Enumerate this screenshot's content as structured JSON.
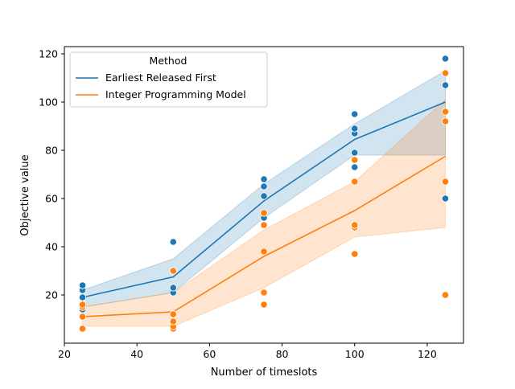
{
  "chart_data": {
    "type": "line",
    "xlabel": "Number of timeslots",
    "ylabel": "Objective value",
    "xlim": [
      20,
      130
    ],
    "ylim": [
      0,
      123
    ],
    "xticks": [
      20,
      40,
      60,
      80,
      100,
      120
    ],
    "yticks": [
      20,
      40,
      60,
      80,
      100,
      120
    ],
    "grid": false,
    "legend": {
      "title": "Method",
      "placement": "top-left"
    },
    "series": [
      {
        "name": "Earliest Released First",
        "color": "#1f77b4",
        "x": [
          25,
          50,
          75,
          100,
          125
        ],
        "mean": [
          19,
          27.5,
          59,
          84.5,
          100
        ],
        "ci_low": [
          15,
          21,
          52,
          78,
          78
        ],
        "ci_high": [
          22,
          35,
          66,
          91,
          113
        ],
        "points": [
          [
            25,
            14
          ],
          [
            25,
            15
          ],
          [
            25,
            19
          ],
          [
            25,
            22
          ],
          [
            25,
            24
          ],
          [
            50,
            21
          ],
          [
            50,
            23
          ],
          [
            50,
            42
          ],
          [
            75,
            52
          ],
          [
            75,
            61
          ],
          [
            75,
            65
          ],
          [
            75,
            68
          ],
          [
            100,
            73
          ],
          [
            100,
            79
          ],
          [
            100,
            87
          ],
          [
            100,
            89
          ],
          [
            100,
            95
          ],
          [
            125,
            60
          ],
          [
            125,
            107
          ],
          [
            125,
            118
          ]
        ]
      },
      {
        "name": "Integer Programming Model",
        "color": "#ff7f0e",
        "x": [
          25,
          50,
          75,
          100,
          125
        ],
        "mean": [
          11,
          13,
          36,
          55,
          77.5
        ],
        "ci_low": [
          7,
          7,
          23,
          44,
          48
        ],
        "ci_high": [
          15,
          21,
          47,
          67,
          101
        ],
        "points": [
          [
            25,
            6
          ],
          [
            25,
            11
          ],
          [
            25,
            15
          ],
          [
            25,
            16
          ],
          [
            50,
            6
          ],
          [
            50,
            7
          ],
          [
            50,
            9
          ],
          [
            50,
            12
          ],
          [
            50,
            30
          ],
          [
            75,
            16
          ],
          [
            75,
            21
          ],
          [
            75,
            38
          ],
          [
            75,
            49
          ],
          [
            75,
            54
          ],
          [
            100,
            37
          ],
          [
            100,
            48
          ],
          [
            100,
            49
          ],
          [
            100,
            67
          ],
          [
            100,
            76
          ],
          [
            125,
            20
          ],
          [
            125,
            67
          ],
          [
            125,
            92
          ],
          [
            125,
            96
          ],
          [
            125,
            112
          ]
        ]
      }
    ]
  }
}
